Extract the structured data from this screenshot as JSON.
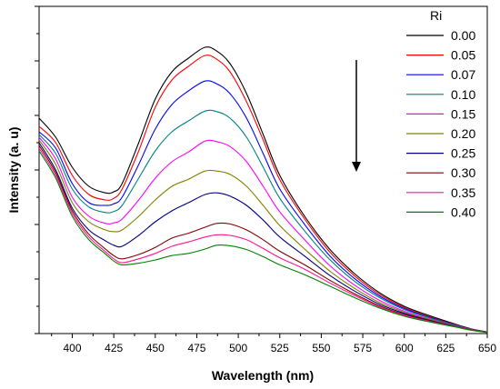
{
  "chart_data": {
    "type": "line",
    "xlabel": "Wavelength (nm)",
    "ylabel": "Intensity (a. u)",
    "xlim": [
      380,
      650
    ],
    "ylim": [
      0,
      60000
    ],
    "xticks": [
      400,
      425,
      450,
      475,
      500,
      525,
      550,
      575,
      600,
      625,
      650
    ],
    "legend_title": "Ri",
    "legend_position": "top-right",
    "annotation": "downward arrow: intensity decreases as Ri increases",
    "grid": false,
    "x": [
      380,
      390,
      400,
      410,
      420,
      425,
      430,
      440,
      450,
      460,
      470,
      480,
      487,
      495,
      505,
      515,
      525,
      540,
      555,
      570,
      585,
      600,
      615,
      630,
      640,
      650
    ],
    "series": [
      {
        "name": "0.00",
        "color": "#000000",
        "values": [
          39500,
          36000,
          30500,
          27000,
          25800,
          26000,
          27500,
          35000,
          43000,
          48000,
          50500,
          52500,
          51800,
          49500,
          44000,
          36500,
          29000,
          21500,
          15500,
          11000,
          7500,
          5000,
          3300,
          1800,
          900,
          300
        ]
      },
      {
        "name": "0.05",
        "color": "#ff0000",
        "values": [
          38000,
          35000,
          29000,
          25500,
          24500,
          24800,
          26500,
          33500,
          41500,
          46500,
          49000,
          51000,
          50300,
          48000,
          42500,
          35500,
          28200,
          21000,
          15000,
          10600,
          7200,
          4800,
          3100,
          1700,
          850,
          280
        ]
      },
      {
        "name": "0.07",
        "color": "#0000ff",
        "values": [
          37000,
          34000,
          27500,
          24000,
          23500,
          23800,
          25000,
          31000,
          37500,
          42000,
          44500,
          46300,
          45800,
          44000,
          39500,
          33000,
          26500,
          20000,
          14300,
          10100,
          6900,
          4600,
          3000,
          1650,
          820,
          270
        ]
      },
      {
        "name": "0.10",
        "color": "#008080",
        "values": [
          36500,
          33000,
          26500,
          23200,
          22200,
          22400,
          23500,
          28500,
          33500,
          37000,
          39000,
          40800,
          40700,
          39500,
          36000,
          30500,
          24800,
          18800,
          13600,
          9600,
          6600,
          4400,
          2900,
          1600,
          800,
          260
        ]
      },
      {
        "name": "0.15",
        "color": "#ff00ff",
        "values": [
          36000,
          32000,
          25000,
          21500,
          20200,
          20300,
          21000,
          24500,
          28500,
          31500,
          33300,
          35300,
          35200,
          34300,
          31500,
          27000,
          22300,
          17200,
          12500,
          8900,
          6100,
          4100,
          2700,
          1500,
          760,
          250
        ]
      },
      {
        "name": "0.20",
        "color": "#808000",
        "values": [
          35500,
          31000,
          24000,
          20500,
          19000,
          18700,
          19000,
          21500,
          24500,
          27000,
          28300,
          29800,
          29800,
          29200,
          27000,
          23500,
          19800,
          15500,
          11500,
          8300,
          5700,
          3900,
          2600,
          1450,
          730,
          240
        ]
      },
      {
        "name": "0.25",
        "color": "#000080",
        "values": [
          35000,
          30000,
          23000,
          19000,
          17000,
          16200,
          16000,
          18000,
          20500,
          22500,
          24000,
          25500,
          25800,
          25200,
          23500,
          20800,
          17700,
          14200,
          10700,
          7800,
          5400,
          3700,
          2450,
          1400,
          700,
          230
        ]
      },
      {
        "name": "0.30",
        "color": "#800000",
        "values": [
          34500,
          29500,
          22500,
          18200,
          15500,
          14300,
          13700,
          14500,
          15800,
          17500,
          18400,
          19500,
          20200,
          20100,
          19000,
          17200,
          15100,
          12600,
          9800,
          7300,
          5100,
          3500,
          2350,
          1350,
          680,
          220
        ]
      },
      {
        "name": "0.35",
        "color": "#ff1493",
        "values": [
          34000,
          29000,
          22000,
          17700,
          15000,
          13700,
          13000,
          13700,
          14700,
          16000,
          16800,
          17700,
          18100,
          18000,
          17200,
          15600,
          13900,
          11800,
          9300,
          7000,
          4900,
          3350,
          2250,
          1300,
          660,
          210
        ]
      },
      {
        "name": "0.40",
        "color": "#008000",
        "values": [
          33500,
          28500,
          21500,
          17200,
          14600,
          13300,
          12600,
          12900,
          13500,
          14300,
          14700,
          15500,
          16200,
          16100,
          15400,
          14100,
          12600,
          10800,
          8700,
          6600,
          4700,
          3200,
          2150,
          1250,
          640,
          200
        ]
      }
    ]
  }
}
